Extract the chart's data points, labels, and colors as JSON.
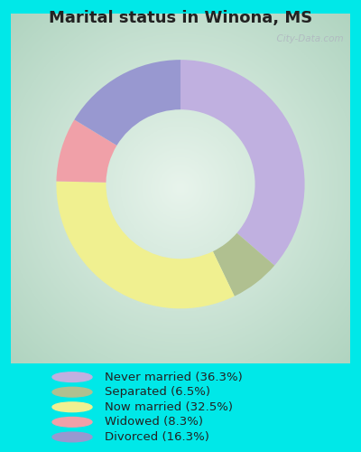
{
  "title": "Marital status in Winona, MS",
  "title_fontsize": 13,
  "background_outer": "#00e8e8",
  "slices": [
    {
      "label": "Never married (36.3%)",
      "value": 36.3,
      "color": "#c0b0e0"
    },
    {
      "label": "Separated (6.5%)",
      "value": 6.5,
      "color": "#b0c090"
    },
    {
      "label": "Now married (32.5%)",
      "value": 32.5,
      "color": "#f0f090"
    },
    {
      "label": "Widowed (8.3%)",
      "value": 8.3,
      "color": "#f0a0a8"
    },
    {
      "label": "Divorced (16.3%)",
      "value": 16.3,
      "color": "#9898d0"
    }
  ],
  "legend_colors": [
    "#c0b0e0",
    "#b0c090",
    "#f0f090",
    "#f0a0a8",
    "#9898d0"
  ],
  "legend_labels": [
    "Never married (36.3%)",
    "Separated (6.5%)",
    "Now married (32.5%)",
    "Widowed (8.3%)",
    "Divorced (16.3%)"
  ],
  "donut_width": 0.4,
  "start_angle": 90,
  "watermark": "  City-Data.com"
}
